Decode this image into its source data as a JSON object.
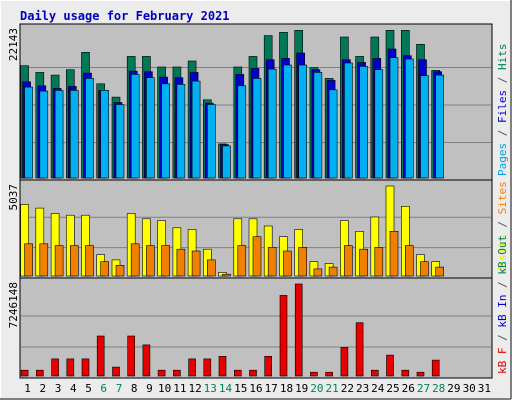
{
  "chart_data": {
    "type": "bar",
    "title": "Daily usage for February 2021",
    "categories": [
      "1",
      "2",
      "3",
      "4",
      "5",
      "6",
      "7",
      "8",
      "9",
      "10",
      "11",
      "12",
      "13",
      "14",
      "15",
      "16",
      "17",
      "18",
      "19",
      "20",
      "21",
      "22",
      "23",
      "24",
      "25",
      "26",
      "27",
      "28",
      "29",
      "30",
      "31"
    ],
    "weekend_days": [
      "6",
      "7",
      "13",
      "14",
      "20",
      "21",
      "27",
      "28"
    ],
    "panels": [
      {
        "name": "top",
        "max_label": "22143",
        "ymax": 22143,
        "right_labels": [
          {
            "text": "Pages",
            "color": "#00a0e0"
          },
          {
            "text": " / ",
            "color": "#555555"
          },
          {
            "text": "Files",
            "color": "#0000d0"
          },
          {
            "text": " / ",
            "color": "#555555"
          },
          {
            "text": "Hits",
            "color": "#008060"
          }
        ],
        "series": [
          {
            "name": "Hits",
            "color": "#007858",
            "values": [
              16800,
              15800,
              15400,
              16200,
              18800,
              14100,
              12100,
              18200,
              18200,
              16600,
              16600,
              17500,
              11700,
              5100,
              16600,
              18200,
              21300,
              21800,
              22100,
              16500,
              14900,
              21100,
              18200,
              21100,
              22100,
              22100,
              20000,
              16100,
              0,
              0,
              0
            ]
          },
          {
            "name": "Files",
            "color": "#0000c8",
            "values": [
              14400,
              13800,
              13400,
              13700,
              15700,
              13100,
              11300,
              16000,
              15900,
              15100,
              15000,
              15800,
              11200,
              5000,
              15500,
              16400,
              17700,
              17900,
              18700,
              16200,
              14600,
              17700,
              17300,
              17900,
              19300,
              18300,
              17700,
              15900,
              0,
              0,
              0
            ]
          },
          {
            "name": "Pages",
            "color": "#00b0f0",
            "values": [
              13600,
              13000,
              13100,
              13100,
              14900,
              13100,
              11000,
              15500,
              15000,
              14100,
              14000,
              14500,
              11000,
              4800,
              13800,
              14900,
              16300,
              16900,
              16900,
              15800,
              13200,
              17200,
              16700,
              16200,
              18000,
              17800,
              15300,
              15400,
              0,
              0,
              0
            ]
          }
        ]
      },
      {
        "name": "middle",
        "max_label": "5037",
        "ymax": 5037,
        "right_labels": [
          {
            "text": "Visits",
            "color": "#e8e800"
          },
          {
            "text": " / ",
            "color": "#555555"
          },
          {
            "text": "Sites",
            "color": "#f08000"
          }
        ],
        "series": [
          {
            "name": "Visits",
            "color": "#ffff00",
            "values": [
              4000,
              3800,
              3500,
              3400,
              3400,
              1200,
              900,
              3500,
              3200,
              3100,
              2700,
              2600,
              1500,
              200,
              3200,
              3200,
              2800,
              2200,
              2600,
              800,
              700,
              3100,
              2500,
              3300,
              5037,
              3900,
              1200,
              800,
              0,
              0,
              0
            ]
          },
          {
            "name": "Sites",
            "color": "#f08000",
            "values": [
              1800,
              1800,
              1700,
              1700,
              1700,
              800,
              600,
              1800,
              1700,
              1700,
              1500,
              1400,
              900,
              100,
              1700,
              2200,
              1600,
              1400,
              1600,
              400,
              500,
              1700,
              1500,
              1600,
              2500,
              1700,
              800,
              500,
              0,
              0,
              0
            ]
          }
        ]
      },
      {
        "name": "bottom",
        "max_label": "7246148",
        "ymax": 7246148,
        "right_labels": [
          {
            "text": "kB F",
            "color": "#e00000"
          },
          {
            "text": " / ",
            "color": "#555555"
          },
          {
            "text": "kB In",
            "color": "#0000d0"
          },
          {
            "text": " / ",
            "color": "#555555"
          },
          {
            "text": "kB Out",
            "color": "#008060"
          }
        ],
        "series": [
          {
            "name": "kB F",
            "color": "#e80000",
            "values": [
              460000,
              460000,
              1350000,
              1350000,
              1350000,
              3150000,
              700000,
              3150000,
              2450000,
              460000,
              460000,
              1350000,
              1350000,
              1550000,
              460000,
              460000,
              1550000,
              6350000,
              7246148,
              300000,
              300000,
              2250000,
              4200000,
              460000,
              1650000,
              460000,
              300000,
              1250000,
              0,
              0,
              0
            ]
          }
        ]
      }
    ]
  }
}
